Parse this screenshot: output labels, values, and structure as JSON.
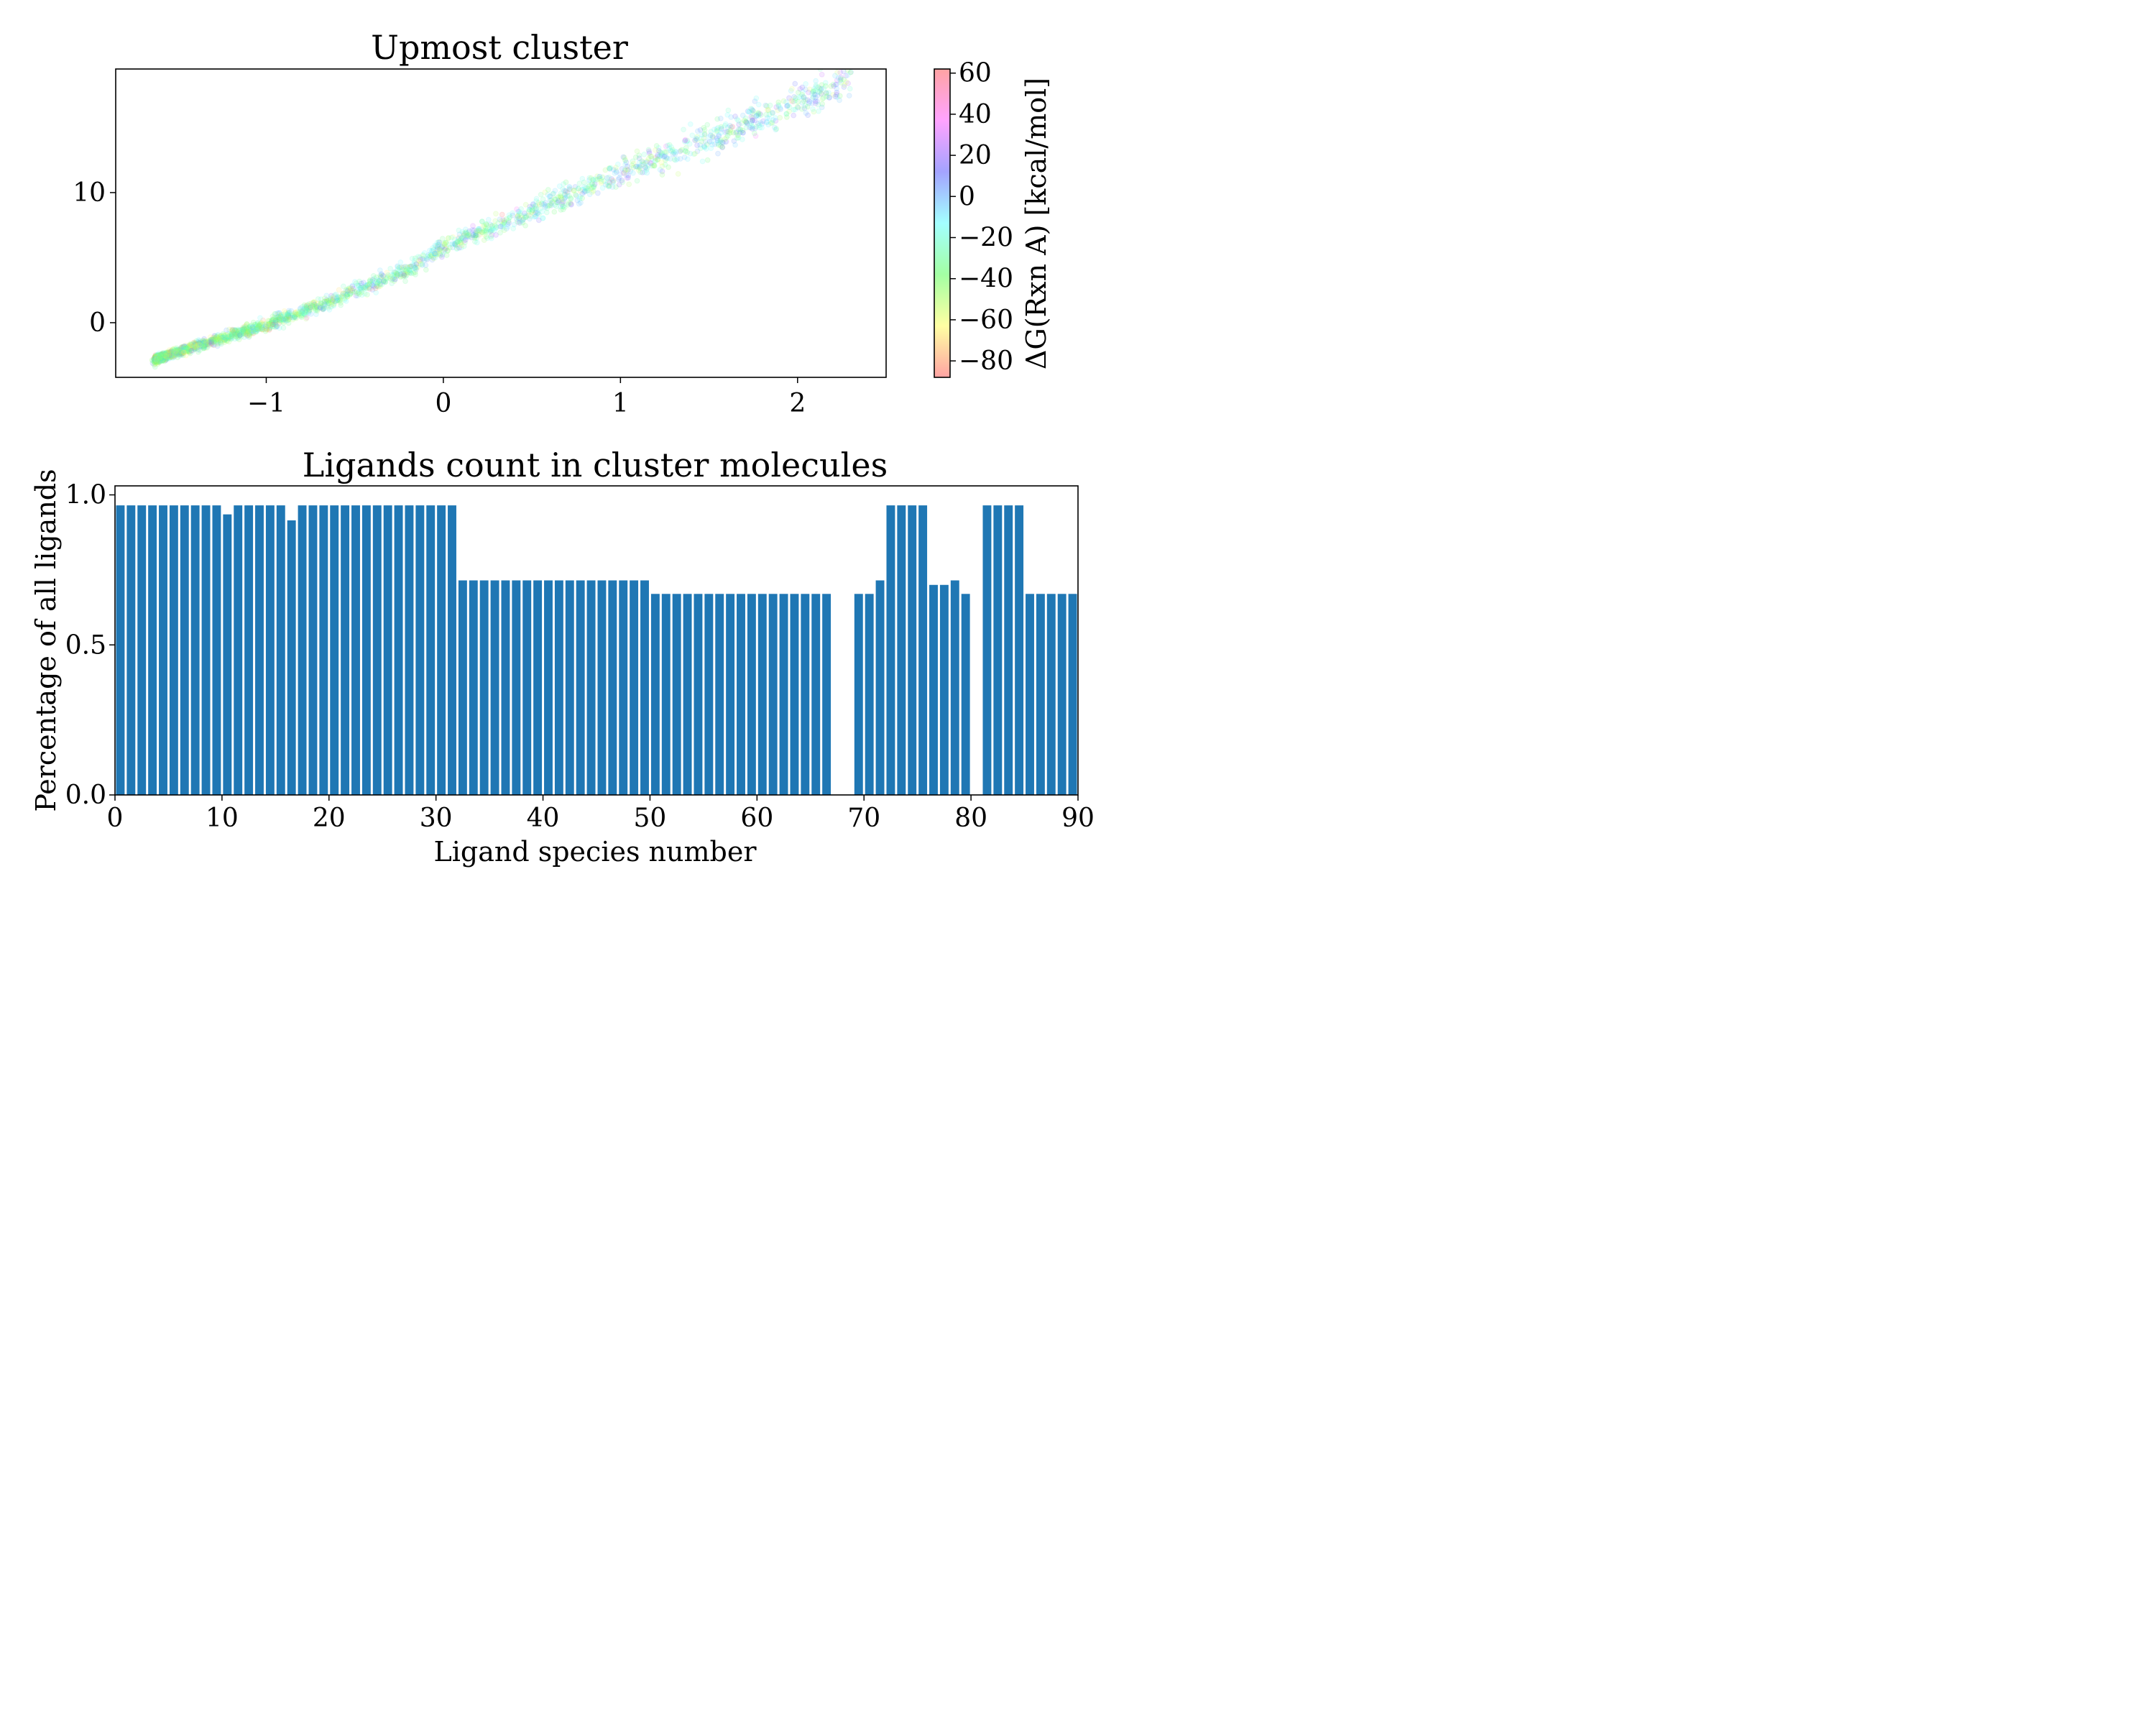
{
  "figure": {
    "background": "#ffffff"
  },
  "chart_data": [
    {
      "type": "scatter",
      "title": "Upmost cluster",
      "xlabel": "",
      "ylabel": "",
      "xlim": [
        -1.85,
        2.5
      ],
      "ylim": [
        -4.2,
        19.5
      ],
      "x_ticks": [
        -1,
        0,
        1,
        2
      ],
      "x_tick_labels": [
        "−1",
        "0",
        "1",
        "2"
      ],
      "y_ticks": [
        0,
        10
      ],
      "y_tick_labels": [
        "0",
        "10"
      ],
      "grid": false,
      "marker_alpha": 0.15,
      "note_points": "dense elongated cloud of points running from lower-left to upper-right",
      "series": [
        {
          "trend_points": [
            {
              "x": -1.62,
              "y": -2.8
            },
            {
              "x": -1.4,
              "y": -1.8
            },
            {
              "x": -1.0,
              "y": -0.2
            },
            {
              "x": -0.6,
              "y": 1.9
            },
            {
              "x": -0.2,
              "y": 4.0
            },
            {
              "x": 0.0,
              "y": 5.8
            },
            {
              "x": 0.4,
              "y": 8.0
            },
            {
              "x": 0.8,
              "y": 10.3
            },
            {
              "x": 1.2,
              "y": 12.6
            },
            {
              "x": 1.6,
              "y": 14.6
            },
            {
              "x": 2.0,
              "y": 17.0
            },
            {
              "x": 2.3,
              "y": 18.5
            }
          ]
        }
      ],
      "colorbar": {
        "label": "ΔG(Rxn A) [kcal/mol]",
        "range": [
          -88,
          62
        ],
        "ticks": [
          60,
          40,
          20,
          0,
          -20,
          -40,
          -60,
          -80
        ],
        "tick_labels": [
          "60",
          "40",
          "20",
          "0",
          "−20",
          "−40",
          "−60",
          "−80"
        ],
        "colormap": [
          "#ff6666",
          "#ffff66",
          "#66ff66",
          "#66ffff",
          "#6666ff",
          "#ff66ff",
          "#ff6666"
        ]
      }
    },
    {
      "type": "bar",
      "title": "Ligands count in cluster molecules",
      "xlabel": "Ligand species number",
      "ylabel": "Percentage of all ligands",
      "xlim": [
        0,
        90
      ],
      "ylim": [
        0,
        1.03
      ],
      "x_ticks": [
        0,
        10,
        20,
        30,
        40,
        50,
        60,
        70,
        80,
        90
      ],
      "x_tick_labels": [
        "0",
        "10",
        "20",
        "30",
        "40",
        "50",
        "60",
        "70",
        "80",
        "90"
      ],
      "y_ticks": [
        0.0,
        0.5,
        1.0
      ],
      "y_tick_labels": [
        "0.0",
        "0.5",
        "1.0"
      ],
      "grid": false,
      "bar_color": "#1f77b4",
      "categories": [
        0,
        1,
        2,
        3,
        4,
        5,
        6,
        7,
        8,
        9,
        10,
        11,
        12,
        13,
        14,
        15,
        16,
        17,
        18,
        19,
        20,
        21,
        22,
        23,
        24,
        25,
        26,
        27,
        28,
        29,
        30,
        31,
        32,
        33,
        34,
        35,
        36,
        37,
        38,
        39,
        40,
        41,
        42,
        43,
        44,
        45,
        46,
        47,
        48,
        49,
        50,
        51,
        52,
        53,
        54,
        55,
        56,
        57,
        58,
        59,
        60,
        61,
        62,
        63,
        64,
        65,
        66,
        67,
        68,
        69,
        70,
        71,
        72,
        73,
        74,
        75,
        76,
        77,
        78,
        79,
        80,
        81,
        82,
        83,
        84,
        85,
        86,
        87,
        88,
        89,
        90
      ],
      "values": [
        0.965,
        0.965,
        0.965,
        0.965,
        0.965,
        0.965,
        0.965,
        0.965,
        0.965,
        0.965,
        0.935,
        0.965,
        0.965,
        0.965,
        0.965,
        0.965,
        0.915,
        0.965,
        0.965,
        0.965,
        0.965,
        0.965,
        0.965,
        0.965,
        0.965,
        0.965,
        0.965,
        0.965,
        0.965,
        0.965,
        0.965,
        0.965,
        0.715,
        0.715,
        0.715,
        0.715,
        0.715,
        0.715,
        0.715,
        0.715,
        0.715,
        0.715,
        0.715,
        0.715,
        0.715,
        0.715,
        0.715,
        0.715,
        0.715,
        0.715,
        0.67,
        0.67,
        0.67,
        0.67,
        0.67,
        0.67,
        0.67,
        0.67,
        0.67,
        0.67,
        0.67,
        0.67,
        0.67,
        0.67,
        0.67,
        0.67,
        0.67,
        0,
        0,
        0.67,
        0.67,
        0.715,
        0.965,
        0.965,
        0.965,
        0.965,
        0.7,
        0.7,
        0.715,
        0.67,
        0,
        0.965,
        0.965,
        0.965,
        0.965,
        0.67,
        0.67,
        0.67,
        0.67,
        0.67,
        0.67
      ]
    }
  ]
}
